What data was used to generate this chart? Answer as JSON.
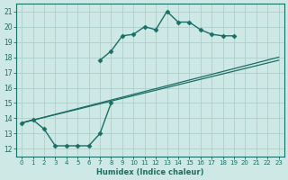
{
  "xlabel": "Humidex (Indice chaleur)",
  "xlim": [
    -0.5,
    23.5
  ],
  "ylim": [
    11.5,
    21.5
  ],
  "xticks": [
    0,
    1,
    2,
    3,
    4,
    5,
    6,
    7,
    8,
    9,
    10,
    11,
    12,
    13,
    14,
    15,
    16,
    17,
    18,
    19,
    20,
    21,
    22,
    23
  ],
  "yticks": [
    12,
    13,
    14,
    15,
    16,
    17,
    18,
    19,
    20,
    21
  ],
  "background_color": "#cde8e5",
  "grid_color": "#aed0cc",
  "line_color": "#1a6e65",
  "series": [
    {
      "x": [
        0,
        1,
        2,
        3,
        4,
        5,
        6,
        7,
        8
      ],
      "y": [
        13.7,
        13.9,
        13.3,
        12.2,
        12.2,
        12.2,
        12.2,
        13.0,
        15.0
      ],
      "marker": "D",
      "markersize": 2.5,
      "linewidth": 1.0
    },
    {
      "x": [
        7,
        8,
        9,
        10,
        11,
        12,
        13,
        14,
        15,
        16,
        17,
        18,
        19
      ],
      "y": [
        17.8,
        18.4,
        19.4,
        19.5,
        20.0,
        19.8,
        21.0,
        20.3,
        20.3,
        19.8,
        19.5,
        19.4,
        19.4
      ],
      "marker": "D",
      "markersize": 2.5,
      "linewidth": 1.0
    },
    {
      "x": [
        0,
        23
      ],
      "y": [
        13.7,
        18.0
      ],
      "marker": null,
      "markersize": 0,
      "linewidth": 0.9
    },
    {
      "x": [
        0,
        23
      ],
      "y": [
        13.7,
        17.8
      ],
      "marker": null,
      "markersize": 0,
      "linewidth": 0.9
    }
  ]
}
